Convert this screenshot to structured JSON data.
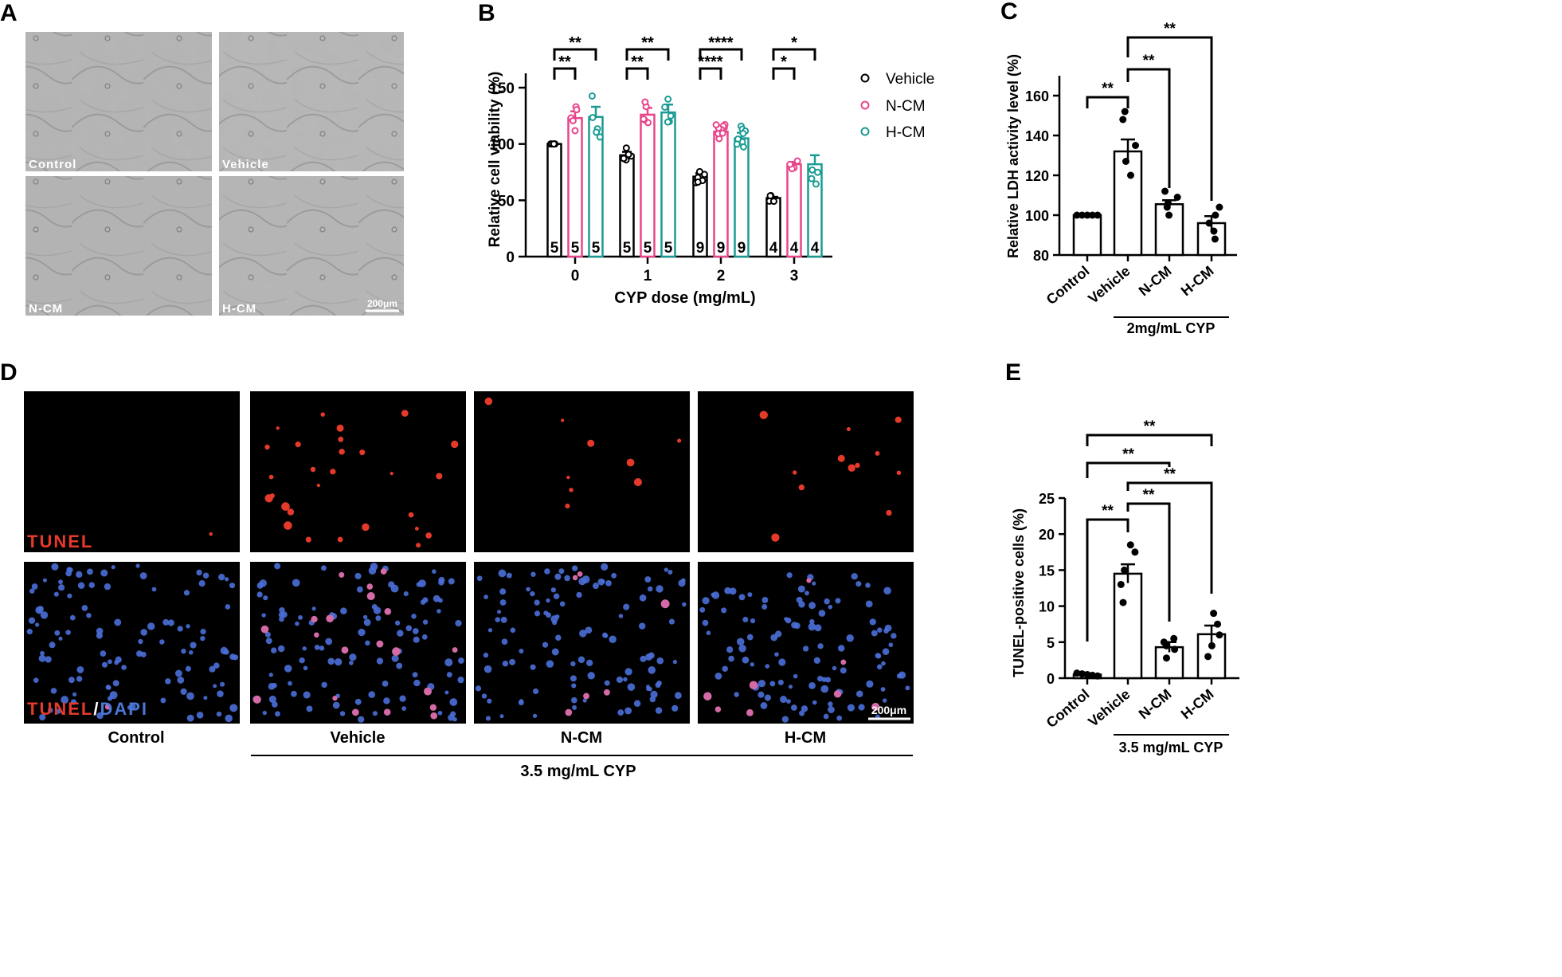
{
  "panels": {
    "A": {
      "letter": "A",
      "images": [
        {
          "label": "Control"
        },
        {
          "label": "Vehicle"
        },
        {
          "label": "N-CM"
        },
        {
          "label": "H-CM"
        }
      ],
      "scalebar": "200μm"
    },
    "D": {
      "letter": "D",
      "row1_label": "TUNEL",
      "row2_label_red": "TUNEL",
      "row2_label_sep": "/",
      "row2_label_blue": "DAPI",
      "columns": [
        "Control",
        "Vehicle",
        "N-CM",
        "H-CM"
      ],
      "scalebar": "200μm",
      "treatment": "3.5 mg/mL CYP"
    }
  },
  "colors": {
    "vehicle": "#000000",
    "ncm": "#e8458b",
    "hcm": "#1a9b94",
    "tunel_red": "#e53a2a",
    "dapi_blue": "#4a77d6",
    "micrograph_gray": "#b5b5b5"
  },
  "chart_data": [
    {
      "panel": "B",
      "type": "bar",
      "xlabel": "CYP dose (mg/mL)",
      "ylabel": "Relative cell viability (%)",
      "categories": [
        "0",
        "1",
        "2",
        "3"
      ],
      "yticks": [
        "0",
        "50",
        "100",
        "150"
      ],
      "ylim": [
        0,
        165
      ],
      "legend_position": "right",
      "series": [
        {
          "name": "Vehicle",
          "color": "#000000",
          "values": [
            100,
            90,
            71,
            52
          ],
          "sem": [
            0,
            3,
            3,
            1
          ],
          "n": [
            "5",
            "5",
            "9",
            "4"
          ]
        },
        {
          "name": "N-CM",
          "color": "#e8458b",
          "values": [
            123,
            126,
            111,
            82
          ],
          "sem": [
            6,
            6,
            3,
            2
          ],
          "n": [
            "5",
            "5",
            "9",
            "4"
          ]
        },
        {
          "name": "H-CM",
          "color": "#1a9b94",
          "values": [
            124,
            128,
            105,
            82
          ],
          "sem": [
            9,
            7,
            5,
            8
          ],
          "n": [
            "5",
            "5",
            "9",
            "4"
          ]
        }
      ],
      "significance": [
        {
          "category": "0",
          "pairs": [
            [
              "Vehicle",
              "N-CM",
              "**"
            ],
            [
              "Vehicle",
              "H-CM",
              "**"
            ]
          ]
        },
        {
          "category": "1",
          "pairs": [
            [
              "Vehicle",
              "N-CM",
              "**"
            ],
            [
              "Vehicle",
              "H-CM",
              "**"
            ]
          ]
        },
        {
          "category": "2",
          "pairs": [
            [
              "Vehicle",
              "N-CM",
              "****"
            ],
            [
              "Vehicle",
              "H-CM",
              "****"
            ]
          ]
        },
        {
          "category": "3",
          "pairs": [
            [
              "Vehicle",
              "N-CM",
              "*"
            ],
            [
              "Vehicle",
              "H-CM",
              "*"
            ]
          ]
        }
      ]
    },
    {
      "panel": "C",
      "type": "bar",
      "ylabel": "Relative LDH activity level (%)",
      "categories": [
        "Control",
        "Vehicle",
        "N-CM",
        "H-CM"
      ],
      "yticks": [
        "80",
        "100",
        "120",
        "140",
        "160"
      ],
      "ylim": [
        80,
        170
      ],
      "values": [
        100,
        132,
        105.5,
        96
      ],
      "sem": [
        0,
        6,
        2,
        3.5
      ],
      "points": [
        [
          100,
          100,
          100,
          100,
          100
        ],
        [
          152,
          148,
          135,
          127,
          120
        ],
        [
          112,
          109,
          106,
          104,
          100
        ],
        [
          104,
          100,
          96,
          92,
          88
        ]
      ],
      "treatment": "2mg/mL CYP",
      "significance": [
        [
          "Control",
          "Vehicle",
          "**"
        ],
        [
          "Vehicle",
          "N-CM",
          "**"
        ],
        [
          "Vehicle",
          "H-CM",
          "**"
        ]
      ]
    },
    {
      "panel": "E",
      "type": "bar",
      "ylabel": "TUNEL-positive cells (%)",
      "categories": [
        "Control",
        "Vehicle",
        "N-CM",
        "H-CM"
      ],
      "yticks": [
        "0",
        "5",
        "10",
        "15",
        "20",
        "25"
      ],
      "ylim": [
        0,
        25
      ],
      "values": [
        0.5,
        14.5,
        4.3,
        6.1
      ],
      "sem": [
        0.1,
        1.3,
        0.7,
        1.2
      ],
      "points": [
        [
          0.7,
          0.6,
          0.5,
          0.4,
          0.3
        ],
        [
          18.5,
          17.5,
          15,
          13,
          10.5
        ],
        [
          5.5,
          5,
          4.5,
          4,
          2.8
        ],
        [
          9,
          7.5,
          6,
          4.5,
          3
        ]
      ],
      "treatment": "3.5 mg/mL CYP",
      "significance": [
        [
          "Control",
          "Vehicle",
          "**"
        ],
        [
          "Vehicle",
          "N-CM",
          "**"
        ],
        [
          "Vehicle",
          "H-CM",
          "**"
        ],
        [
          "Control",
          "N-CM",
          "**"
        ],
        [
          "Control",
          "H-CM",
          "**"
        ]
      ]
    }
  ]
}
